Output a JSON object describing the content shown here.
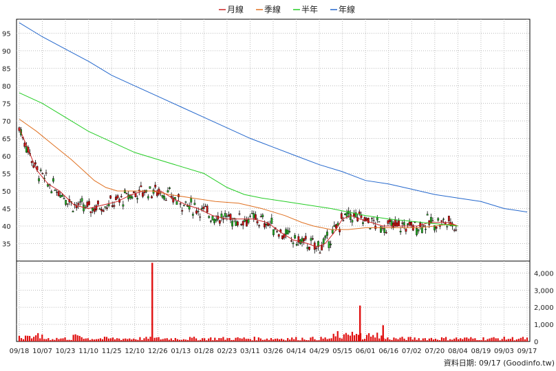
{
  "legend": [
    {
      "label": "月線",
      "color": "#cc2222"
    },
    {
      "label": "季線",
      "color": "#e07020"
    },
    {
      "label": "半年",
      "color": "#22cc22"
    },
    {
      "label": "年線",
      "color": "#2266cc"
    }
  ],
  "footer": {
    "text": "資料日期: 09/17 (Goodinfo.tw)"
  },
  "colors": {
    "up": "#22aa22",
    "down": "#cc1111",
    "volume": "#e01010",
    "grid": "#bbbbbb"
  },
  "chart_data": [
    {
      "type": "candlestick",
      "title": "",
      "x_tick_labels": [
        "09/18",
        "10/07",
        "10/23",
        "11/10",
        "11/25",
        "12/10",
        "12/26",
        "01/13",
        "01/28",
        "02/23",
        "03/11",
        "03/26",
        "04/14",
        "04/29",
        "05/15",
        "06/01",
        "06/16",
        "07/02",
        "07/20",
        "08/04",
        "08/19",
        "09/03",
        "09/17"
      ],
      "y_ticks": [
        35,
        40,
        45,
        50,
        55,
        60,
        65,
        70,
        75,
        80,
        85,
        90,
        95
      ],
      "ylim": [
        30,
        99
      ],
      "grid": true,
      "legend_position": "top-center",
      "series": [
        {
          "name": "月線",
          "color": "#cc2222",
          "values": [
            [
              0,
              68
            ],
            [
              15,
              62
            ],
            [
              30,
              56
            ],
            [
              50,
              52
            ],
            [
              70,
              50
            ],
            [
              95,
              46
            ],
            [
              120,
              45
            ],
            [
              145,
              46
            ],
            [
              170,
              47
            ],
            [
              195,
              49
            ],
            [
              215,
              50
            ],
            [
              245,
              50
            ],
            [
              265,
              48
            ],
            [
              290,
              46
            ],
            [
              310,
              45
            ],
            [
              335,
              43
            ],
            [
              360,
              42
            ],
            [
              380,
              42
            ],
            [
              405,
              42
            ],
            [
              430,
              41
            ],
            [
              455,
              38
            ],
            [
              475,
              36
            ],
            [
              500,
              35
            ],
            [
              515,
              34
            ],
            [
              530,
              35
            ],
            [
              545,
              38
            ],
            [
              560,
              42
            ],
            [
              575,
              43
            ],
            [
              590,
              42
            ],
            [
              610,
              41
            ],
            [
              630,
              40
            ],
            [
              650,
              40
            ],
            [
              670,
              40
            ],
            [
              690,
              40
            ],
            [
              710,
              41
            ],
            [
              730,
              41
            ],
            [
              745,
              41
            ],
            [
              760,
              40
            ]
          ]
        },
        {
          "name": "季線",
          "color": "#e07020",
          "values": [
            [
              0,
              70.5
            ],
            [
              30,
              67
            ],
            [
              60,
              63
            ],
            [
              90,
              59
            ],
            [
              110,
              56
            ],
            [
              130,
              53
            ],
            [
              150,
              51
            ],
            [
              170,
              50
            ],
            [
              200,
              50
            ],
            [
              230,
              50
            ],
            [
              260,
              49
            ],
            [
              300,
              48
            ],
            [
              340,
              47
            ],
            [
              380,
              46.5
            ],
            [
              420,
              45
            ],
            [
              460,
              43
            ],
            [
              490,
              41
            ],
            [
              510,
              40
            ],
            [
              540,
              39
            ],
            [
              570,
              39
            ],
            [
              600,
              39.5
            ],
            [
              630,
              39.5
            ],
            [
              660,
              39.5
            ],
            [
              690,
              39.5
            ],
            [
              720,
              40
            ],
            [
              745,
              40.5
            ],
            [
              760,
              40
            ]
          ]
        },
        {
          "name": "半年",
          "color": "#22cc22",
          "values": [
            [
              0,
              78
            ],
            [
              40,
              75
            ],
            [
              80,
              71
            ],
            [
              120,
              67
            ],
            [
              160,
              64
            ],
            [
              200,
              61
            ],
            [
              240,
              59
            ],
            [
              280,
              57
            ],
            [
              320,
              55
            ],
            [
              360,
              51
            ],
            [
              390,
              49
            ],
            [
              420,
              48
            ],
            [
              460,
              47
            ],
            [
              500,
              46
            ],
            [
              540,
              45
            ],
            [
              570,
              44
            ],
            [
              600,
              43
            ],
            [
              640,
              42
            ],
            [
              670,
              41.5
            ],
            [
              700,
              41
            ],
            [
              730,
              40.5
            ],
            [
              760,
              40
            ]
          ]
        },
        {
          "name": "年線",
          "color": "#2266cc",
          "values": [
            [
              0,
              98
            ],
            [
              40,
              94
            ],
            [
              80,
              90.5
            ],
            [
              120,
              87
            ],
            [
              160,
              83
            ],
            [
              200,
              80
            ],
            [
              240,
              77
            ],
            [
              280,
              74
            ],
            [
              320,
              71
            ],
            [
              360,
              68
            ],
            [
              400,
              65
            ],
            [
              440,
              62.5
            ],
            [
              480,
              60
            ],
            [
              520,
              57.5
            ],
            [
              560,
              55.5
            ],
            [
              600,
              53
            ],
            [
              640,
              52
            ],
            [
              680,
              50.5
            ],
            [
              720,
              49
            ],
            [
              760,
              48
            ],
            [
              800,
              47
            ],
            [
              840,
              45
            ],
            [
              880,
              44
            ]
          ]
        }
      ]
    },
    {
      "type": "bar",
      "title": "",
      "y_ticks": [
        0,
        1000,
        2000,
        3000,
        4000
      ],
      "y_tick_labels": [
        "0",
        "1,000",
        "2,000",
        "3,000",
        "4,000"
      ],
      "ylim": [
        0,
        4700
      ],
      "grid": true,
      "highlights": [
        {
          "x_label": "12/26",
          "value": 4600
        },
        {
          "x_label": "06/01",
          "value": 2100
        },
        {
          "x_label": "06/16",
          "value": 950
        }
      ]
    }
  ]
}
